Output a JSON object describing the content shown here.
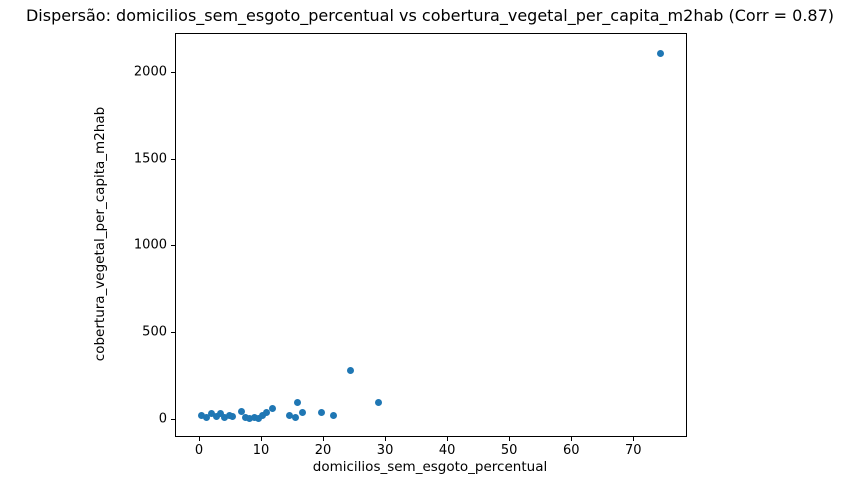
{
  "chart_data": {
    "type": "scatter",
    "title": "Dispersão: domicilios_sem_esgoto_percentual vs cobertura_vegetal_per_capita_m2hab (Corr = 0.87)",
    "xlabel": "domicilios_sem_esgoto_percentual",
    "ylabel": "cobertura_vegetal_per_capita_m2hab",
    "correlation": "0.87",
    "xlim": [
      -3.7,
      78.5
    ],
    "ylim": [
      -100,
      2220
    ],
    "x_ticks": [
      "0",
      "10",
      "20",
      "30",
      "40",
      "50",
      "60",
      "70"
    ],
    "x_tick_values": [
      0,
      10,
      20,
      30,
      40,
      50,
      60,
      70
    ],
    "y_ticks": [
      "0",
      "500",
      "1000",
      "1500",
      "2000"
    ],
    "y_tick_values": [
      0,
      500,
      1000,
      1500,
      2000
    ],
    "grid": false,
    "legend": false,
    "marker_color": "#1f77b4",
    "x": [
      0.4,
      1.2,
      2.1,
      2.8,
      3.4,
      4.1,
      4.9,
      5.4,
      6.9,
      7.5,
      8.1,
      8.9,
      9.6,
      10.3,
      10.9,
      11.8,
      14.6,
      15.5,
      15.9,
      16.7,
      19.8,
      21.7,
      24.4,
      29.0,
      74.4
    ],
    "y": [
      20,
      5,
      30,
      15,
      28,
      6,
      20,
      10,
      40,
      8,
      2,
      8,
      2,
      20,
      36,
      58,
      18,
      5,
      92,
      38,
      33,
      16,
      277,
      95,
      2110
    ]
  }
}
